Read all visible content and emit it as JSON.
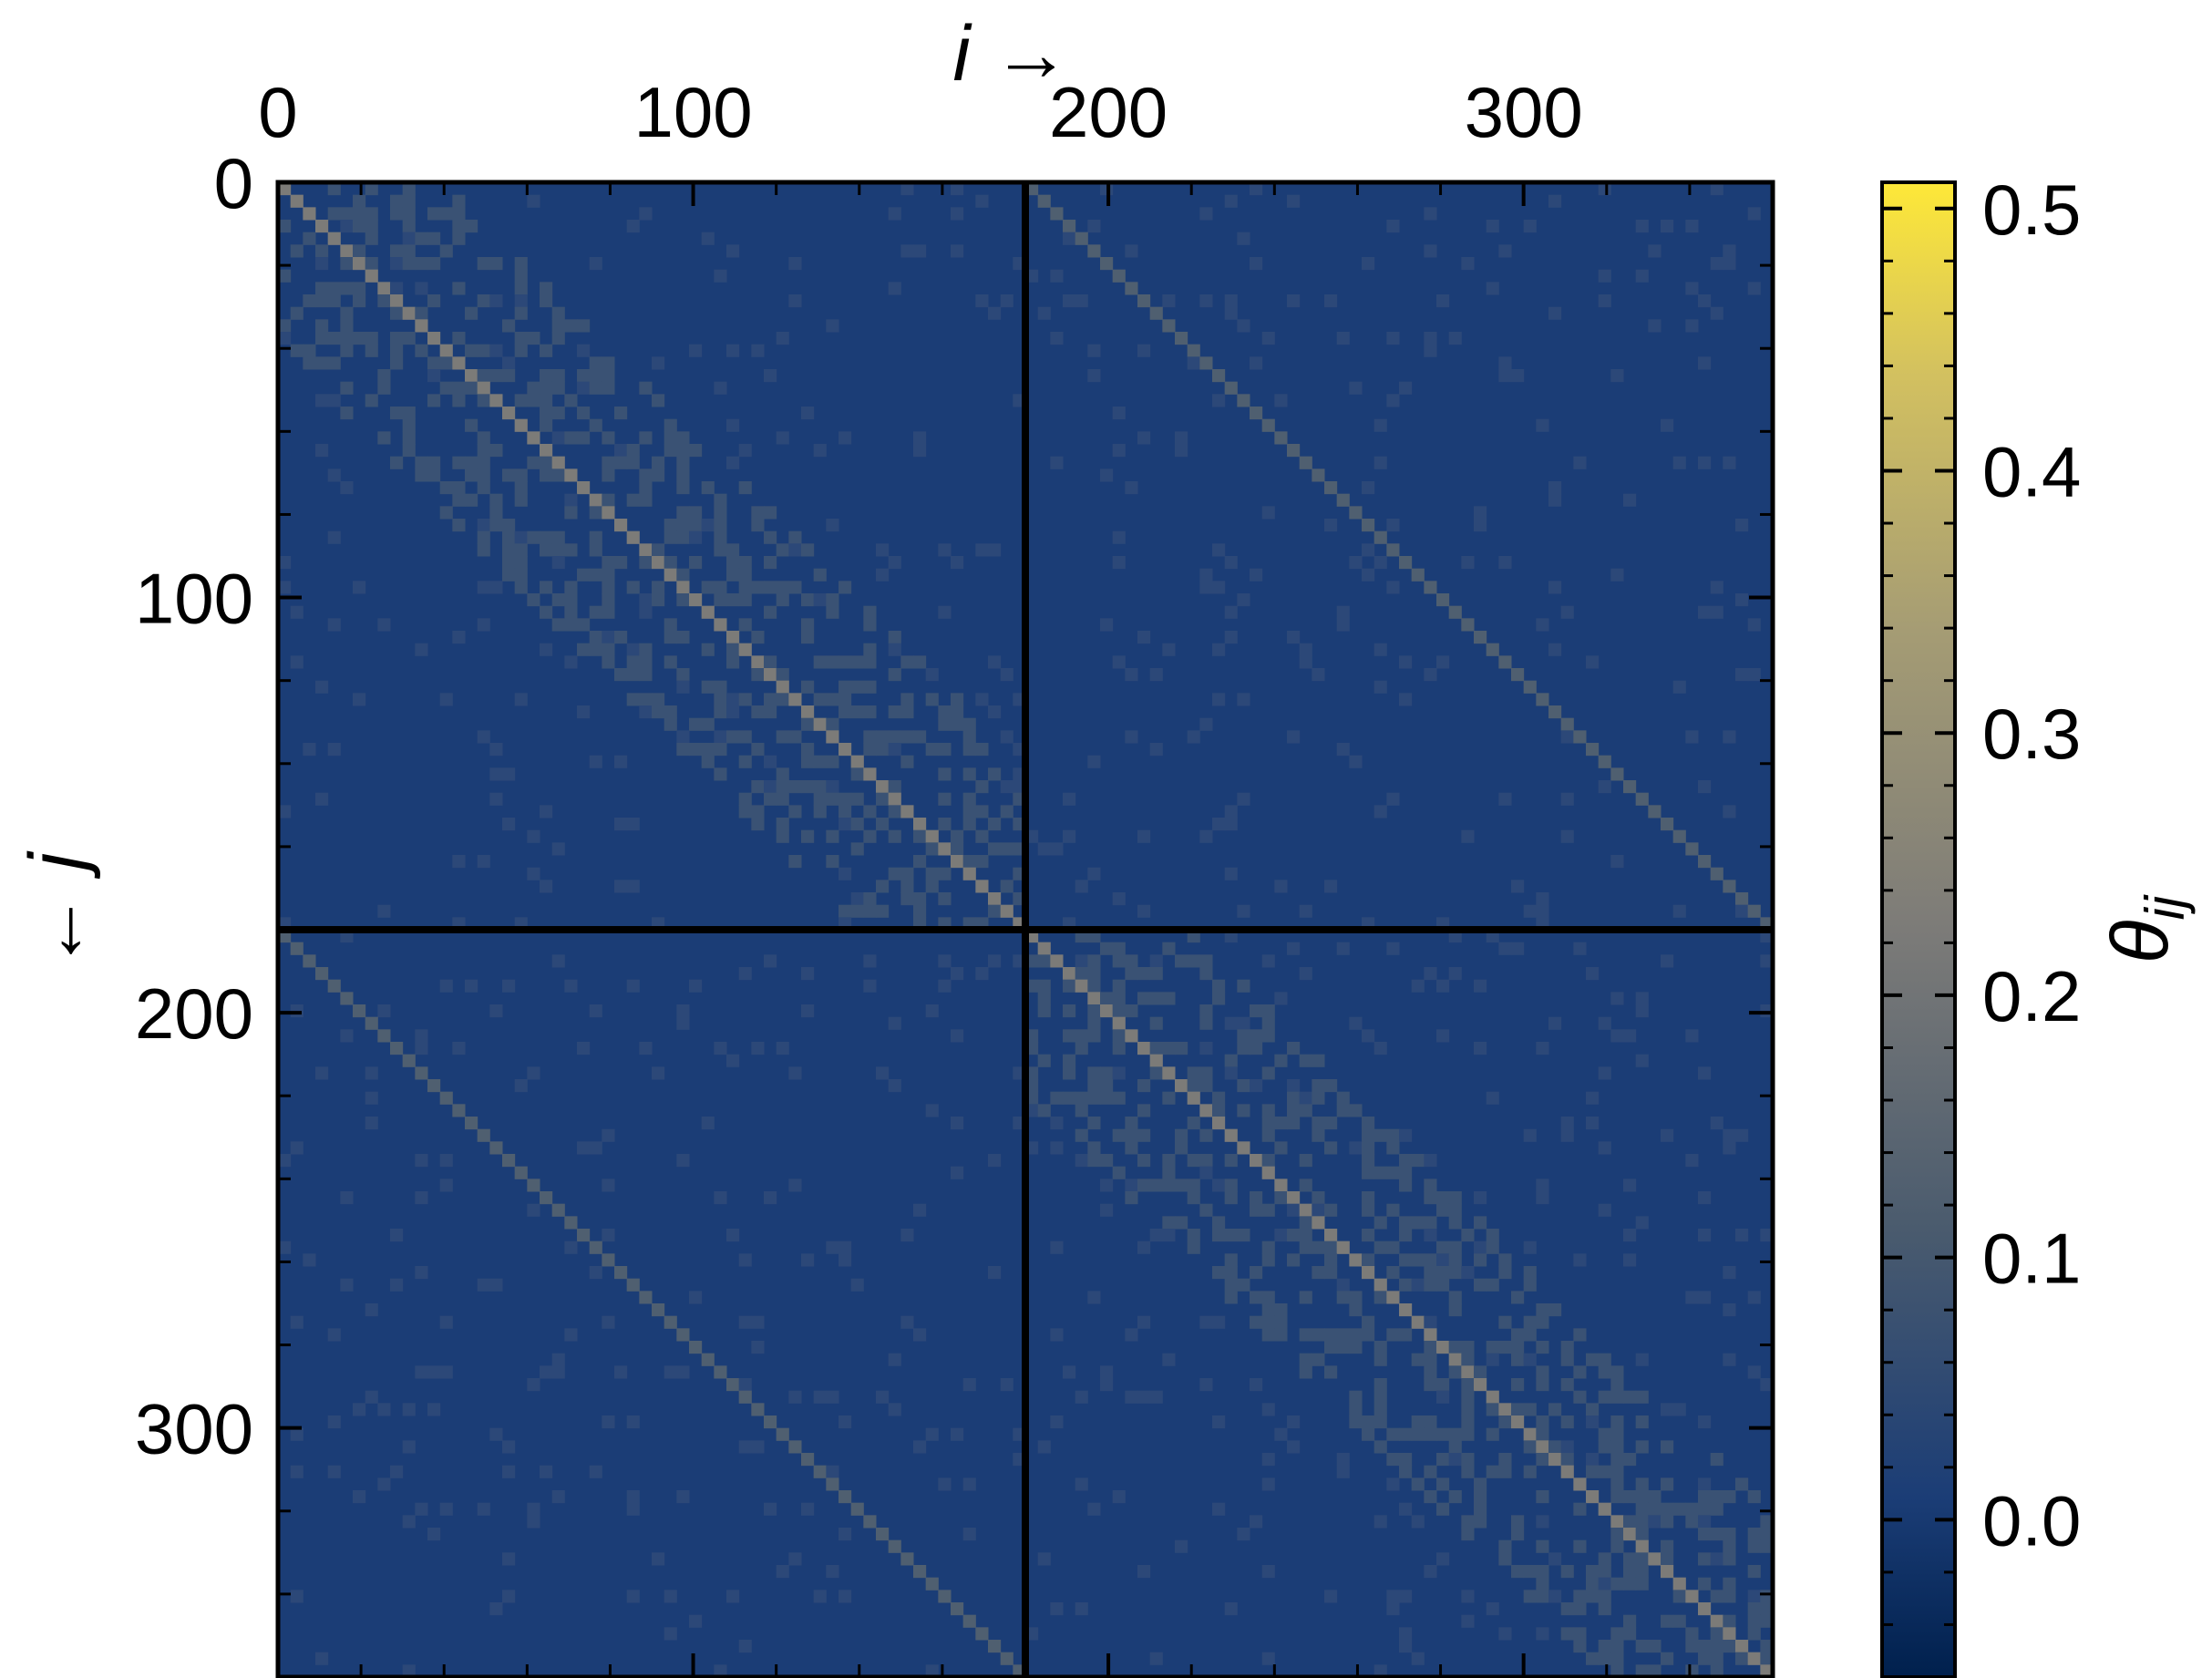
{
  "chart_data": {
    "type": "heatmap",
    "title": "",
    "xlabel": "i →",
    "ylabel": "← j",
    "x_range": [
      0,
      360
    ],
    "y_range": [
      0,
      360
    ],
    "y_inverted": true,
    "x_ticks": [
      0,
      100,
      200,
      300
    ],
    "y_ticks": [
      0,
      100,
      200,
      300
    ],
    "x_tick_labels": [
      "0",
      "100",
      "200",
      "300"
    ],
    "y_tick_labels": [
      "0",
      "100",
      "200",
      "300"
    ],
    "x_axis_position": "top",
    "block_divider": 180,
    "colorbar": {
      "label": "θij",
      "label_main": "θ",
      "label_sub": "ij",
      "range": [
        -0.06,
        0.51
      ],
      "ticks": [
        0.0,
        0.1,
        0.2,
        0.3,
        0.4,
        0.5
      ],
      "tick_labels": [
        "0.0",
        "0.1",
        "0.2",
        "0.3",
        "0.4",
        "0.5"
      ],
      "colormap": "cividis",
      "position": "right"
    },
    "background_value": 0.0,
    "diagonal_value": 0.12,
    "off_diagonal_block_diagonal_value": 0.08,
    "colors": {
      "low": "#00204d",
      "background": "#1b3d76",
      "mid": "#7c7b78",
      "high": "#fee838",
      "frame": "#000000"
    }
  }
}
